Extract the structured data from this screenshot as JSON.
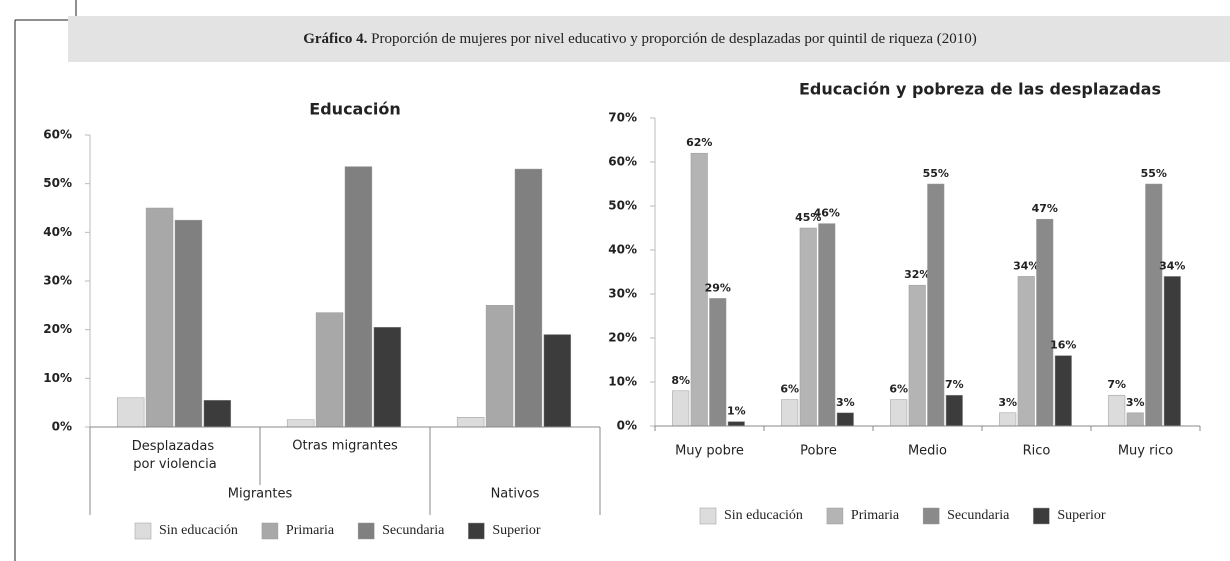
{
  "header": {
    "label": "Gráfico 4.",
    "text": "Proporción de mujeres por nivel educativo y proporción de desplazadas por quintil de riqueza (2010)"
  },
  "chart_data": [
    {
      "type": "bar",
      "title": "Educación",
      "categories": [
        "Desplazadas por violencia",
        "Otras migrantes",
        null
      ],
      "groups": [
        {
          "name": "Migrantes",
          "count": 2
        },
        {
          "name": "Nativos",
          "count": 1
        }
      ],
      "series": [
        {
          "name": "Sin educación",
          "color": "#dcdcdc",
          "values": [
            6,
            1.5,
            2
          ]
        },
        {
          "name": "Primaria",
          "color": "#a8a8a8",
          "values": [
            45,
            23.5,
            25
          ]
        },
        {
          "name": "Secundaria",
          "color": "#808080",
          "values": [
            42.5,
            53.5,
            53
          ]
        },
        {
          "name": "Superior",
          "color": "#3c3c3c",
          "values": [
            5.5,
            20.5,
            19
          ]
        }
      ],
      "ylim": [
        0,
        60
      ],
      "yticks": [
        {
          "value": 0,
          "label": "0%"
        },
        {
          "value": 10,
          "label": "10%"
        },
        {
          "value": 20,
          "label": "20%"
        },
        {
          "value": 30,
          "label": "30%"
        },
        {
          "value": 40,
          "label": "40%"
        },
        {
          "value": 50,
          "label": "50%"
        },
        {
          "value": 60,
          "label": "60%"
        }
      ],
      "grid": false,
      "legend": "bottom"
    },
    {
      "type": "bar",
      "title": "Educación y pobreza de las desplazadas",
      "categories": [
        "Muy pobre",
        "Pobre",
        "Medio",
        "Rico",
        "Muy rico"
      ],
      "series": [
        {
          "name": "Sin educación",
          "color": "#dcdcdc",
          "values": [
            8,
            6,
            6,
            3,
            7
          ],
          "value_labels": [
            "8%",
            "6%",
            "6%",
            "3%",
            "7%"
          ]
        },
        {
          "name": "Primaria",
          "color": "#b4b4b4",
          "values": [
            62,
            45,
            32,
            34,
            3
          ],
          "value_labels": [
            "62%",
            "45%",
            "32%",
            "34%",
            "3%"
          ]
        },
        {
          "name": "Secundaria",
          "color": "#8a8a8a",
          "values": [
            29,
            46,
            55,
            47,
            55
          ],
          "value_labels": [
            "29%",
            "46%",
            "55%",
            "47%",
            "55%"
          ]
        },
        {
          "name": "Superior",
          "color": "#3c3c3c",
          "values": [
            1,
            3,
            7,
            16,
            34
          ],
          "value_labels": [
            "1%",
            "3%",
            "7%",
            "16%",
            "34%"
          ]
        }
      ],
      "ylim": [
        0,
        70
      ],
      "yticks": [
        {
          "value": 0,
          "label": "0%"
        },
        {
          "value": 10,
          "label": "10%"
        },
        {
          "value": 20,
          "label": "20%"
        },
        {
          "value": 30,
          "label": "30%"
        },
        {
          "value": 40,
          "label": "40%"
        },
        {
          "value": 50,
          "label": "50%"
        },
        {
          "value": 60,
          "label": "60%"
        },
        {
          "value": 70,
          "label": "70%"
        }
      ],
      "grid": false,
      "legend": "bottom"
    }
  ]
}
